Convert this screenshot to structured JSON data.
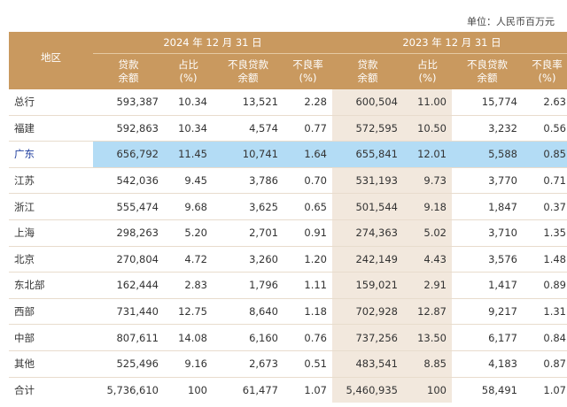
{
  "unit_label": "单位：人民币百万元",
  "header": {
    "region": "地区",
    "period_2024": "2024 年 12 月 31 日",
    "period_2023": "2023 年 12 月 31 日",
    "col_loans_1": "贷款",
    "col_loans_2": "余额",
    "col_share_1": "占比",
    "col_share_2": "(%)",
    "col_npl_1": "不良贷款",
    "col_npl_2": "余额",
    "col_nplr_1": "不良率",
    "col_nplr_2": "(%)"
  },
  "rows": [
    {
      "name": "总行",
      "l24": "593,387",
      "s24": "10.34",
      "n24": "13,521",
      "r24": "2.28",
      "l23": "600,504",
      "s23": "11.00",
      "n23": "15,774",
      "r23": "2.63"
    },
    {
      "name": "福建",
      "l24": "592,863",
      "s24": "10.34",
      "n24": "4,574",
      "r24": "0.77",
      "l23": "572,595",
      "s23": "10.50",
      "n23": "3,232",
      "r23": "0.56"
    },
    {
      "name": "广东",
      "l24": "656,792",
      "s24": "11.45",
      "n24": "10,741",
      "r24": "1.64",
      "l23": "655,841",
      "s23": "12.01",
      "n23": "5,588",
      "r23": "0.85"
    },
    {
      "name": "江苏",
      "l24": "542,036",
      "s24": "9.45",
      "n24": "3,786",
      "r24": "0.70",
      "l23": "531,193",
      "s23": "9.73",
      "n23": "3,770",
      "r23": "0.71"
    },
    {
      "name": "浙江",
      "l24": "555,474",
      "s24": "9.68",
      "n24": "3,625",
      "r24": "0.65",
      "l23": "501,544",
      "s23": "9.18",
      "n23": "1,847",
      "r23": "0.37"
    },
    {
      "name": "上海",
      "l24": "298,263",
      "s24": "5.20",
      "n24": "2,701",
      "r24": "0.91",
      "l23": "274,363",
      "s23": "5.02",
      "n23": "3,710",
      "r23": "1.35"
    },
    {
      "name": "北京",
      "l24": "270,804",
      "s24": "4.72",
      "n24": "3,260",
      "r24": "1.20",
      "l23": "242,149",
      "s23": "4.43",
      "n23": "3,576",
      "r23": "1.48"
    },
    {
      "name": "东北部",
      "l24": "162,444",
      "s24": "2.83",
      "n24": "1,796",
      "r24": "1.11",
      "l23": "159,021",
      "s23": "2.91",
      "n23": "1,417",
      "r23": "0.89"
    },
    {
      "name": "西部",
      "l24": "731,440",
      "s24": "12.75",
      "n24": "8,640",
      "r24": "1.18",
      "l23": "702,928",
      "s23": "12.87",
      "n23": "9,217",
      "r23": "1.31"
    },
    {
      "name": "中部",
      "l24": "807,611",
      "s24": "14.08",
      "n24": "6,160",
      "r24": "0.76",
      "l23": "737,256",
      "s23": "13.50",
      "n23": "6,177",
      "r23": "0.84"
    },
    {
      "name": "其他",
      "l24": "525,496",
      "s24": "9.16",
      "n24": "2,673",
      "r24": "0.51",
      "l23": "483,541",
      "s23": "8.85",
      "n23": "4,183",
      "r23": "0.87"
    },
    {
      "name": "合计",
      "l24": "5,736,610",
      "s24": "100",
      "n24": "61,477",
      "r24": "1.07",
      "l23": "5,460,935",
      "s23": "100",
      "n23": "58,491",
      "r23": "1.07"
    }
  ],
  "highlight_row": "广东",
  "colors": {
    "header_bg": "#c9995f",
    "shaded_column": "#f2e8dd",
    "highlight": "#b3dcf5",
    "highlight_text": "#1f3e9e"
  }
}
